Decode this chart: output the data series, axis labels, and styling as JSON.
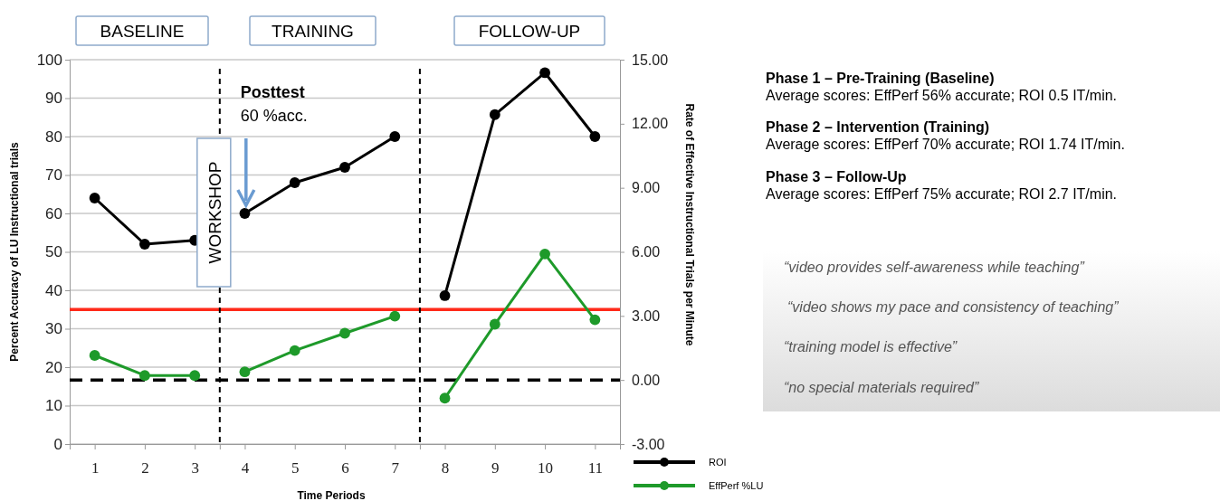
{
  "chart_data": {
    "type": "line",
    "xlabel": "Time Periods",
    "ylabel": "Percent Accuracy of LU Instructional trials",
    "y2label": "Rate of Effective Instructional Trials per Minute",
    "xlim": [
      0.5,
      11.5
    ],
    "xticks": [
      1,
      2,
      3,
      {
        "value": 3.5,
        "label": null
      },
      4,
      5,
      6,
      7,
      {
        "value": 7.5,
        "label": null
      },
      8,
      9,
      10,
      11
    ],
    "ylim": [
      0,
      100
    ],
    "yticks": [
      0,
      10,
      20,
      30,
      40,
      50,
      60,
      70,
      80,
      90,
      100
    ],
    "y2lim": [
      -3,
      15
    ],
    "y2ticks": [
      {
        "value": -3,
        "label": "-3.00"
      },
      {
        "value": 0,
        "label": "0.00"
      },
      {
        "value": 3,
        "label": "3.00"
      },
      {
        "value": 6,
        "label": "6.00"
      },
      {
        "value": 9,
        "label": "9.00"
      },
      {
        "value": 12,
        "label": "12.00"
      },
      {
        "value": 15,
        "label": "15.00"
      }
    ],
    "series": [
      {
        "name": "ROI",
        "color": "#000000",
        "x": [
          1,
          2,
          3,
          4,
          5,
          6,
          7,
          8,
          9,
          10,
          11
        ],
        "values": [
          64,
          52,
          53,
          60,
          68,
          72,
          80,
          38.6,
          85.7,
          96.6,
          80
        ]
      },
      {
        "name": "EffPerf %LU",
        "color": "#1e9a2a",
        "axis": "y2",
        "x": [
          1,
          2,
          3,
          4,
          5,
          6,
          7,
          8,
          9,
          10,
          11
        ],
        "values": [
          1.15,
          0.21,
          0.21,
          0.38,
          1.38,
          2.19,
          2.99,
          -0.85,
          2.61,
          5.9,
          2.82
        ]
      }
    ],
    "ref_lines": [
      {
        "axis": "y",
        "value": 35,
        "color": "#ff2a1a",
        "line_style": "solid"
      },
      {
        "axis": "y2",
        "value": 0,
        "color": "#000000",
        "line_style": "dashed"
      },
      {
        "axis": "x",
        "value": 3.5,
        "color": "#000000",
        "line_style": "dashed"
      },
      {
        "axis": "x",
        "value": 7.5,
        "color": "#000000",
        "line_style": "dashed"
      }
    ],
    "annotations": [
      "BASELINE",
      "TRAINING",
      "FOLLOW-UP",
      "WORKSHOP",
      "Posttest",
      "60 %acc.",
      "Phase 1 – Pre-Training (Baseline)",
      "Average scores: EffPerf 56% accurate; ROI 0.5 IT/min.",
      "Phase 2 – Intervention (Training)",
      "Average scores: EffPerf 70% accurate; ROI 1.74 IT/min.",
      "Phase 3 – Follow-Up",
      "Average scores: EffPerf 75% accurate; ROI 2.7 IT/min.",
      "“video provides self-awareness while teaching”",
      "“video shows my pace and consistency of teaching”",
      "“training model is effective”",
      "“no special materials required”"
    ],
    "grid": "y",
    "legend": "bottom right",
    "marker": "circle",
    "line_style": "solid"
  }
}
